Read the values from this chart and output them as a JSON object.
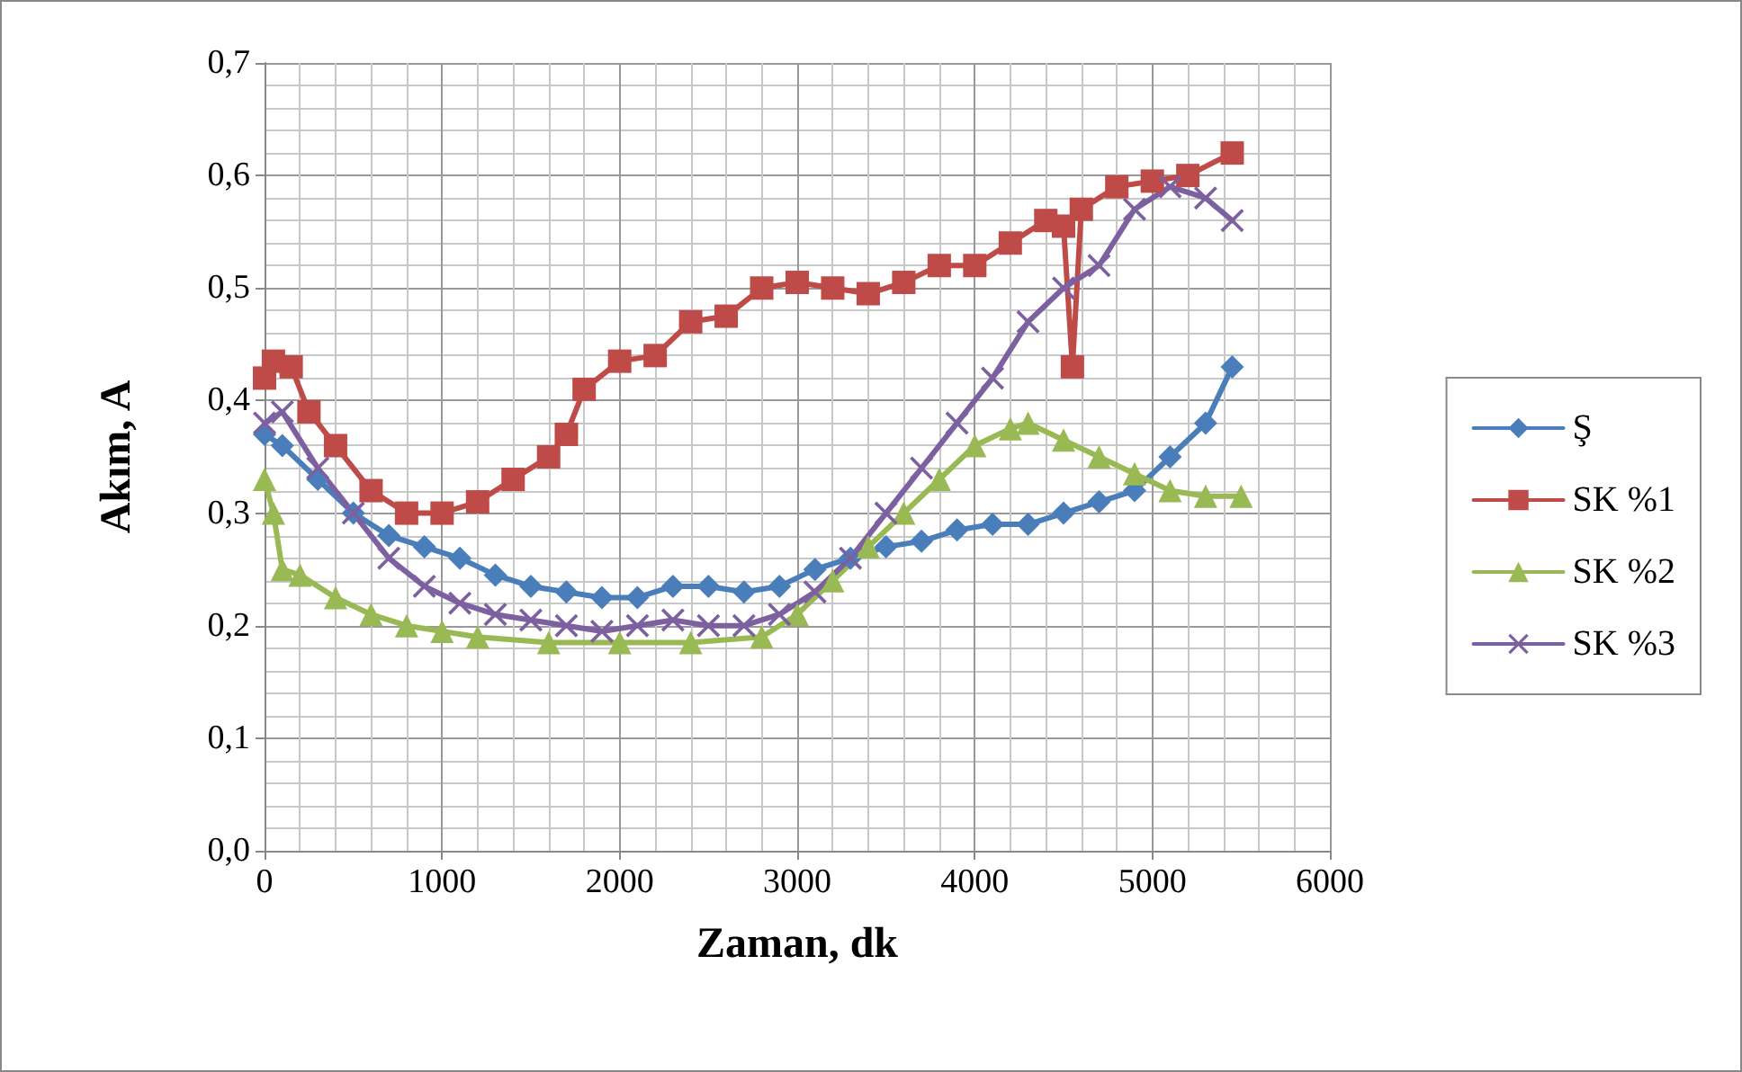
{
  "chart_data": {
    "type": "line",
    "xlabel": "Zaman, dk",
    "ylabel": "Akım, A",
    "xlim": [
      0,
      6000
    ],
    "xticks": [
      0,
      1000,
      2000,
      3000,
      4000,
      5000,
      6000
    ],
    "ylim": [
      0,
      0.7
    ],
    "yticks": [
      {
        "value": 0,
        "label": "0,0"
      },
      {
        "value": 0.1,
        "label": "0,1"
      },
      {
        "value": 0.2,
        "label": "0,2"
      },
      {
        "value": 0.3,
        "label": "0,3"
      },
      {
        "value": 0.4,
        "label": "0,4"
      },
      {
        "value": 0.5,
        "label": "0,5"
      },
      {
        "value": 0.6,
        "label": "0,6"
      },
      {
        "value": 0.7,
        "label": "0,7"
      }
    ],
    "grid": true,
    "legend": "right",
    "line_style": "solid",
    "series": [
      {
        "name": "Ş",
        "color": "#4a7ebb",
        "marker": "diamond",
        "x": [
          0,
          100,
          300,
          500,
          700,
          900,
          1100,
          1300,
          1500,
          1700,
          1900,
          2100,
          2300,
          2500,
          2700,
          2900,
          3100,
          3300,
          3500,
          3700,
          3900,
          4100,
          4300,
          4500,
          4700,
          4900,
          5100,
          5300,
          5450
        ],
        "values": [
          0.37,
          0.36,
          0.33,
          0.3,
          0.28,
          0.27,
          0.26,
          0.245,
          0.235,
          0.23,
          0.225,
          0.225,
          0.235,
          0.235,
          0.23,
          0.235,
          0.25,
          0.26,
          0.27,
          0.275,
          0.285,
          0.29,
          0.29,
          0.3,
          0.31,
          0.32,
          0.35,
          0.38,
          0.43
        ]
      },
      {
        "name": "SK %1",
        "color": "#be4b48",
        "marker": "square",
        "x": [
          0,
          50,
          150,
          250,
          400,
          600,
          800,
          1000,
          1200,
          1400,
          1600,
          1700,
          1800,
          2000,
          2200,
          2400,
          2600,
          2800,
          3000,
          3200,
          3400,
          3600,
          3800,
          4000,
          4200,
          4400,
          4500,
          4550,
          4600,
          4800,
          5000,
          5200,
          5450
        ],
        "values": [
          0.42,
          0.435,
          0.43,
          0.39,
          0.36,
          0.32,
          0.3,
          0.3,
          0.31,
          0.33,
          0.35,
          0.37,
          0.41,
          0.435,
          0.44,
          0.47,
          0.475,
          0.5,
          0.505,
          0.5,
          0.495,
          0.505,
          0.52,
          0.52,
          0.54,
          0.56,
          0.555,
          0.43,
          0.57,
          0.59,
          0.595,
          0.6,
          0.62
        ]
      },
      {
        "name": "SK %2",
        "color": "#98b954",
        "marker": "triangle",
        "x": [
          0,
          50,
          100,
          200,
          400,
          600,
          800,
          1000,
          1200,
          1600,
          2000,
          2400,
          2800,
          3000,
          3200,
          3400,
          3600,
          3800,
          4000,
          4200,
          4300,
          4500,
          4700,
          4900,
          5100,
          5300,
          5500
        ],
        "values": [
          0.33,
          0.3,
          0.25,
          0.245,
          0.225,
          0.21,
          0.2,
          0.195,
          0.19,
          0.185,
          0.185,
          0.185,
          0.19,
          0.21,
          0.24,
          0.27,
          0.3,
          0.33,
          0.36,
          0.375,
          0.38,
          0.365,
          0.35,
          0.335,
          0.32,
          0.315,
          0.315
        ]
      },
      {
        "name": "SK %3",
        "color": "#7d60a0",
        "marker": "cross",
        "x": [
          0,
          100,
          300,
          500,
          700,
          900,
          1100,
          1300,
          1500,
          1700,
          1900,
          2100,
          2300,
          2500,
          2700,
          2900,
          3100,
          3300,
          3500,
          3700,
          3900,
          4100,
          4300,
          4500,
          4700,
          4900,
          5100,
          5300,
          5450
        ],
        "values": [
          0.38,
          0.39,
          0.34,
          0.3,
          0.26,
          0.235,
          0.22,
          0.21,
          0.205,
          0.2,
          0.195,
          0.2,
          0.205,
          0.2,
          0.2,
          0.21,
          0.23,
          0.26,
          0.3,
          0.34,
          0.38,
          0.42,
          0.47,
          0.5,
          0.52,
          0.57,
          0.59,
          0.58,
          0.56
        ]
      }
    ]
  }
}
